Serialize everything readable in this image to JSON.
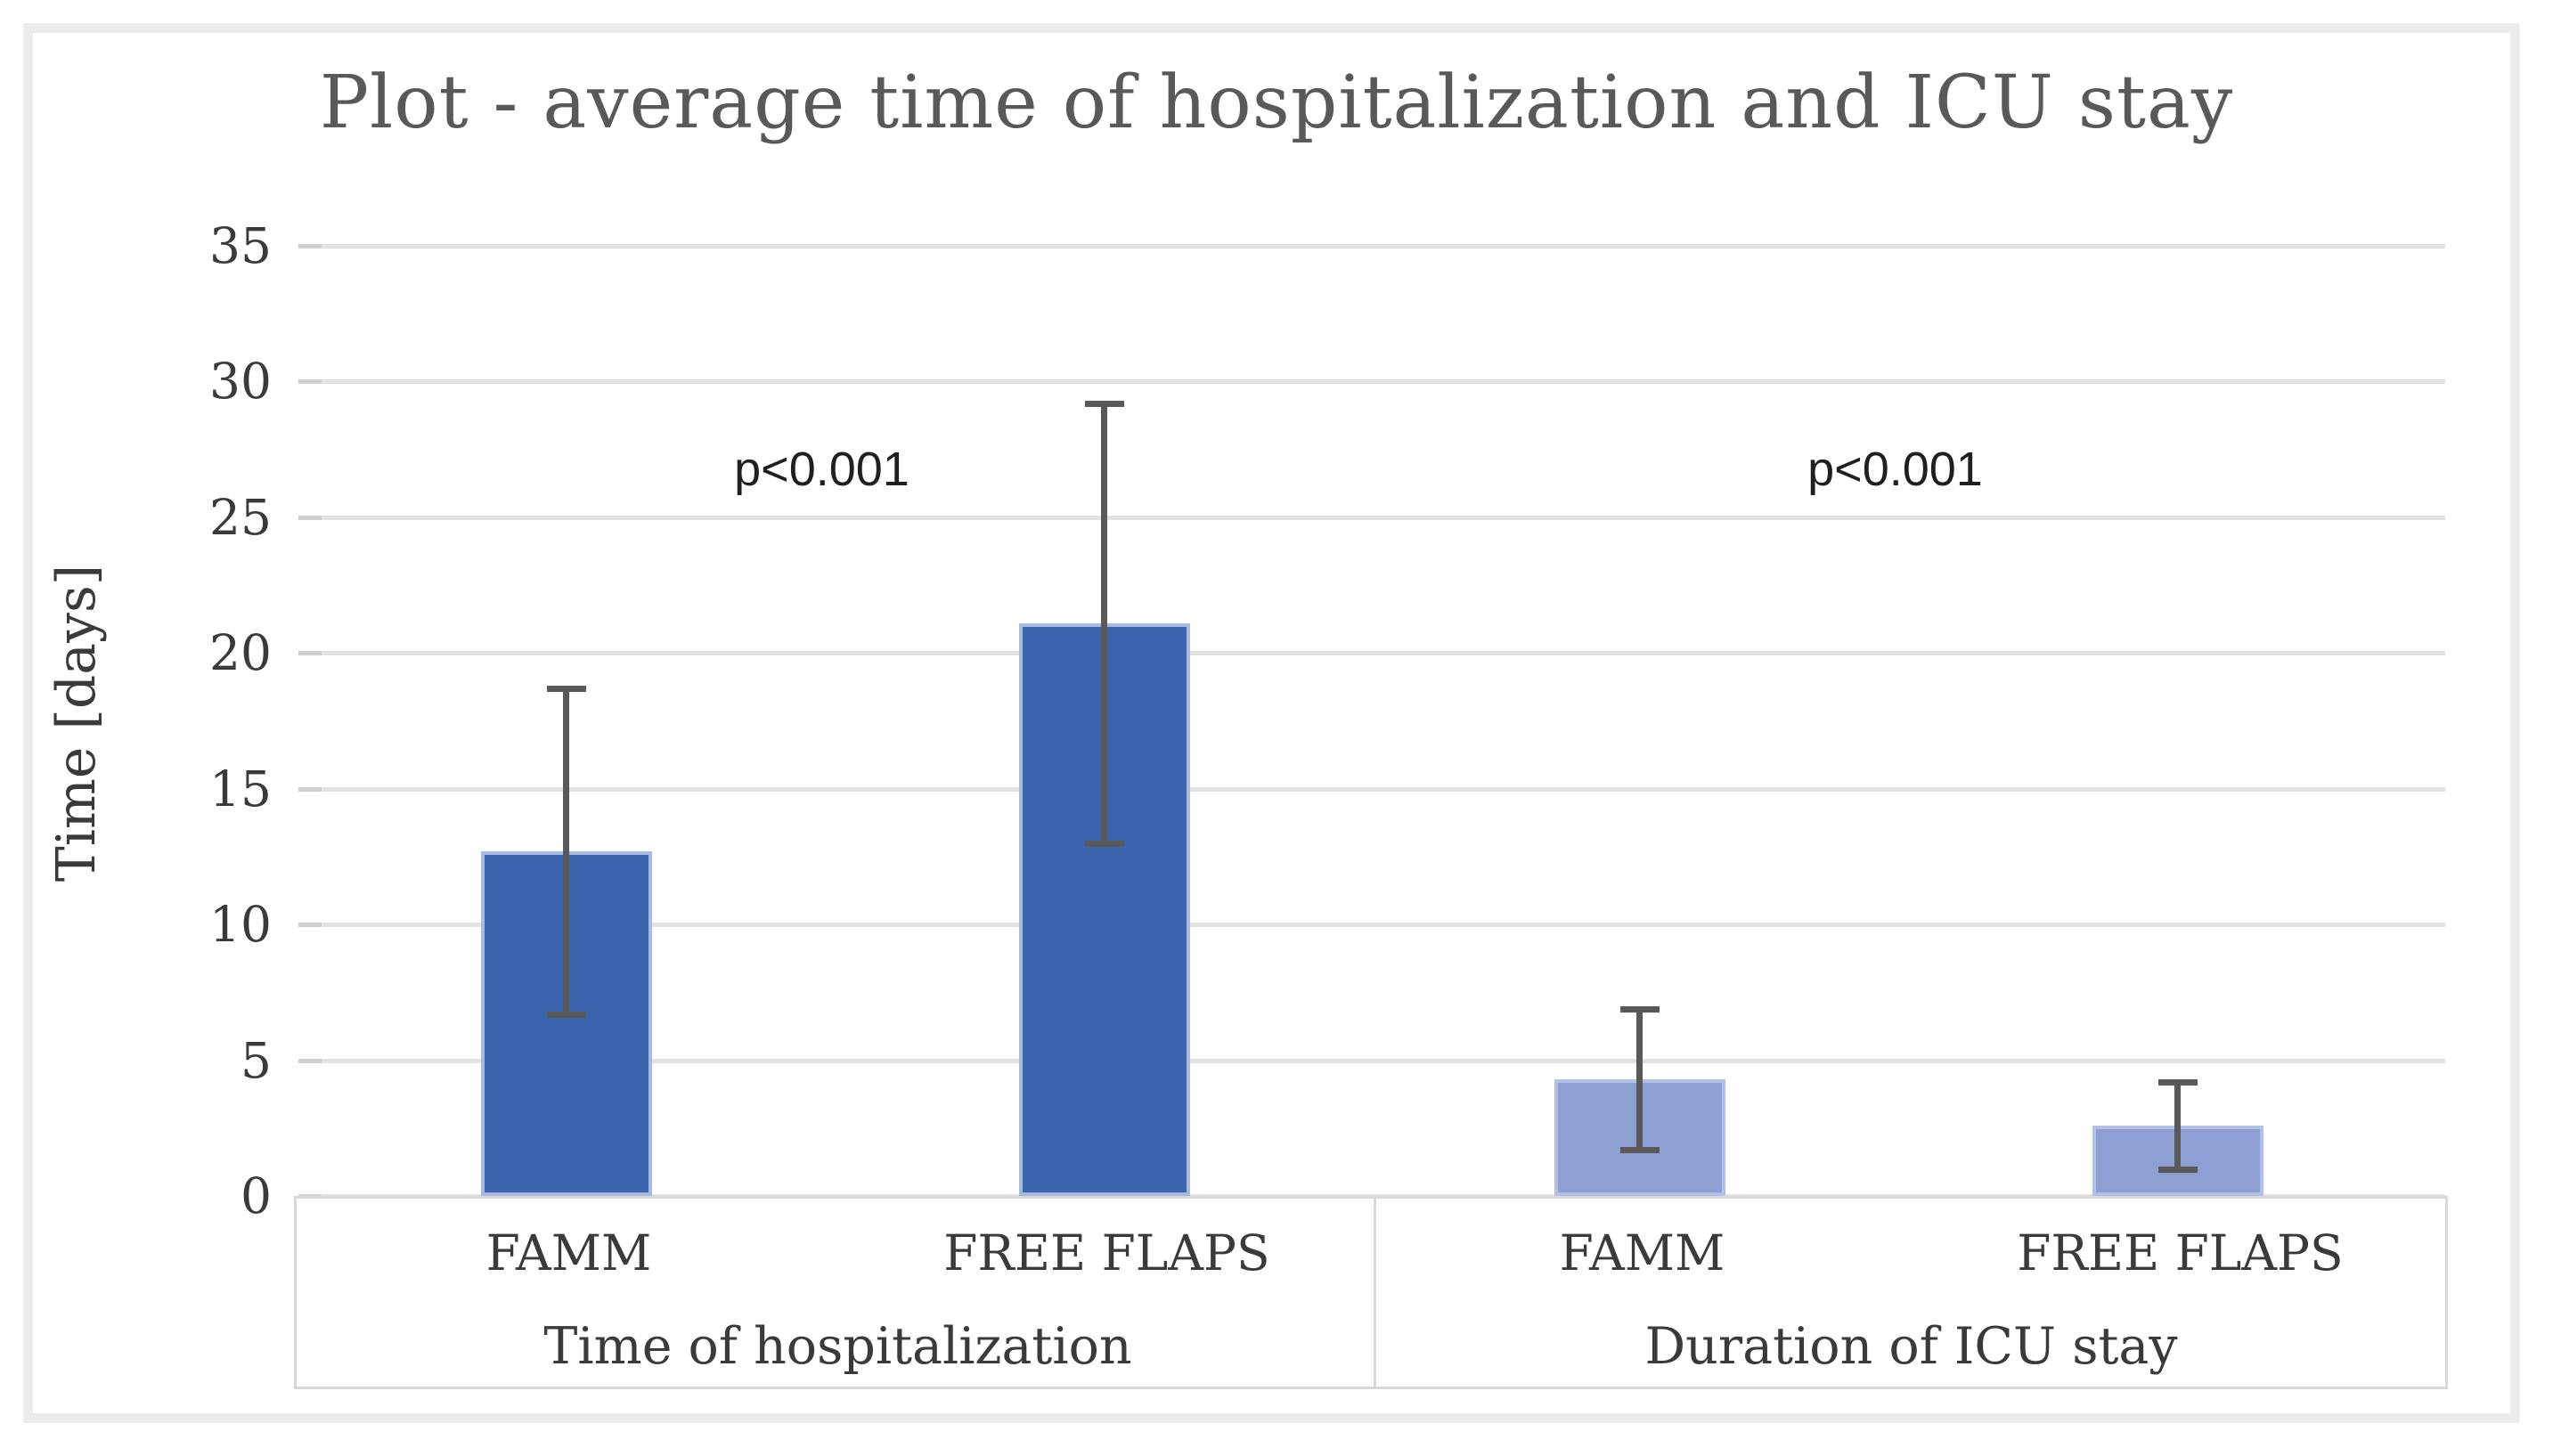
{
  "chart_data": {
    "type": "bar",
    "title": "Plot - average time of hospitalization and ICU stay",
    "xlabel": "",
    "ylabel": "Time [days]",
    "ylim": [
      0,
      35
    ],
    "yticks": [
      0,
      5,
      10,
      15,
      20,
      25,
      30,
      35
    ],
    "grid": "horizontal",
    "legend": "none",
    "error_bars": true,
    "groups": [
      {
        "label": "Time of hospitalization",
        "annotation": "p<0.001",
        "bars": [
          {
            "category": "FAMM",
            "value": 12.7,
            "error": 6.0,
            "series": "hospitalization"
          },
          {
            "category": "FREE FLAPS",
            "value": 21.1,
            "error": 8.1,
            "series": "hospitalization"
          }
        ]
      },
      {
        "label": "Duration of ICU stay",
        "annotation": "p<0.001",
        "bars": [
          {
            "category": "FAMM",
            "value": 4.3,
            "error": 2.6,
            "series": "icu"
          },
          {
            "category": "FREE FLAPS",
            "value": 2.6,
            "error": 1.6,
            "series": "icu"
          }
        ]
      }
    ],
    "colors": {
      "hospitalization_bar": "#3b63ae",
      "icu_bar": "#8e9fd4",
      "error_bar": "#595959",
      "gridline": "#e2e2e2",
      "axis_text": "#3a3a3a",
      "title_text": "#595959",
      "band_border": "#d9d9d9",
      "figure_border": "#ececec"
    }
  }
}
